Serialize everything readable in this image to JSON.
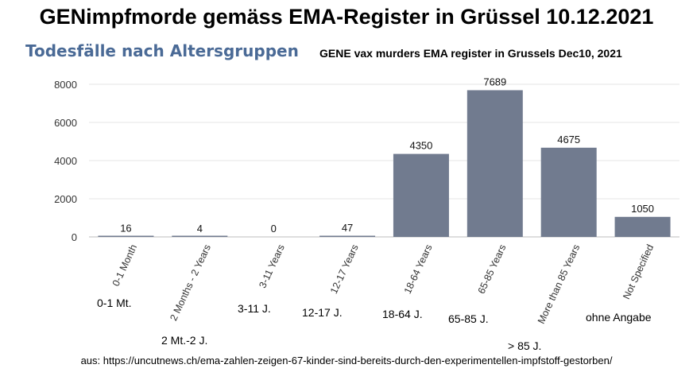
{
  "header": {
    "title": "GENimpfmorde gemäss EMA-Register in Grüssel 10.12.2021",
    "subtitle_de": "Todesfälle nach Altersgruppen",
    "subtitle_en": "GENE vax murders EMA register in Grussels Dec10, 2021"
  },
  "chart_data": {
    "type": "bar",
    "title": "Todesfälle nach Altersgruppen",
    "categories": [
      "0-1 Month",
      "2 Months - 2 Years",
      "3-11 Years",
      "12-17 Years",
      "18-64 Years",
      "65-85 Years",
      "More than 85 Years",
      "Not Specified"
    ],
    "values": [
      16,
      4,
      0,
      47,
      4350,
      7689,
      4675,
      1050
    ],
    "data_labels": [
      "16",
      "4",
      "0",
      "47",
      "4350",
      "7689",
      "4675",
      "1050"
    ],
    "yticks": [
      "0",
      "2000",
      "4000",
      "6000",
      "8000"
    ],
    "ylim": [
      0,
      8000
    ],
    "grid": true,
    "bar_color": "#717b8f"
  },
  "german_labels": [
    "0-1 Mt.",
    "2 Mt.-2 J.",
    "3-11 J.",
    "12-17 J.",
    "18-64 J.",
    "65-85 J.",
    "> 85 J.",
    "ohne Angabe"
  ],
  "source": "aus: https://uncutnews.ch/ema-zahlen-zeigen-67-kinder-sind-bereits-durch-den-experimentellen-impfstoff-gestorben/"
}
